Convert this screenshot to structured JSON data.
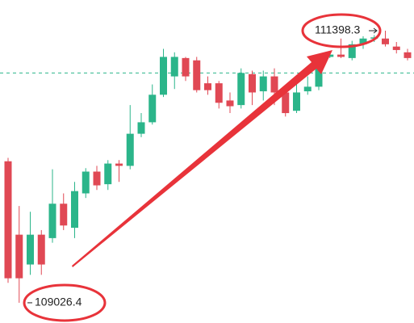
{
  "chart_data": {
    "type": "candlestick",
    "ylim": [
      108850,
      111666
    ],
    "up_color": "#2bb58a",
    "down_color": "#e04854",
    "price_line": 111030,
    "price_line_color": "#2bb58a",
    "open": [
      110260,
      109620,
      109360,
      109620,
      109590,
      109890,
      109680,
      109980,
      110170,
      110060,
      110240,
      110220,
      110500,
      110600,
      110840,
      111000,
      111160,
      111140,
      110940,
      110940,
      110790,
      110750,
      111020,
      110870,
      111000,
      110860,
      110700,
      110870,
      110910,
      111170,
      111190,
      111160,
      111280,
      111330,
      111330,
      111260,
      111210
    ],
    "high": [
      110290,
      109870,
      109820,
      109660,
      110190,
      109980,
      110080,
      110200,
      110220,
      110270,
      110270,
      110750,
      110680,
      110930,
      111240,
      111210,
      111170,
      111170,
      111000,
      110960,
      110860,
      111070,
      111050,
      111050,
      111070,
      110890,
      110960,
      111000,
      111140,
      111210,
      111330,
      111310,
      111350,
      111360,
      111398.3,
      111300,
      111240
    ],
    "low": [
      109200,
      109026.4,
      109270,
      109270,
      109550,
      109660,
      109590,
      109940,
      110010,
      110010,
      110080,
      110190,
      110470,
      110580,
      110820,
      110890,
      110960,
      110860,
      110840,
      110720,
      110680,
      110720,
      110750,
      110790,
      110750,
      110650,
      110680,
      110840,
      110880,
      111160,
      111160,
      111140,
      111240,
      111300,
      111260,
      111200,
      111140
    ],
    "close": [
      109240,
      109240,
      109620,
      109360,
      109890,
      109700,
      110000,
      110170,
      110050,
      110240,
      110220,
      110500,
      110600,
      110840,
      111170,
      111170,
      111000,
      110880,
      110880,
      110770,
      110740,
      111030,
      110860,
      111000,
      110860,
      110680,
      110860,
      110910,
      111100,
      111190,
      111170,
      111280,
      111330,
      111340,
      111280,
      111230,
      111160
    ]
  }
}
